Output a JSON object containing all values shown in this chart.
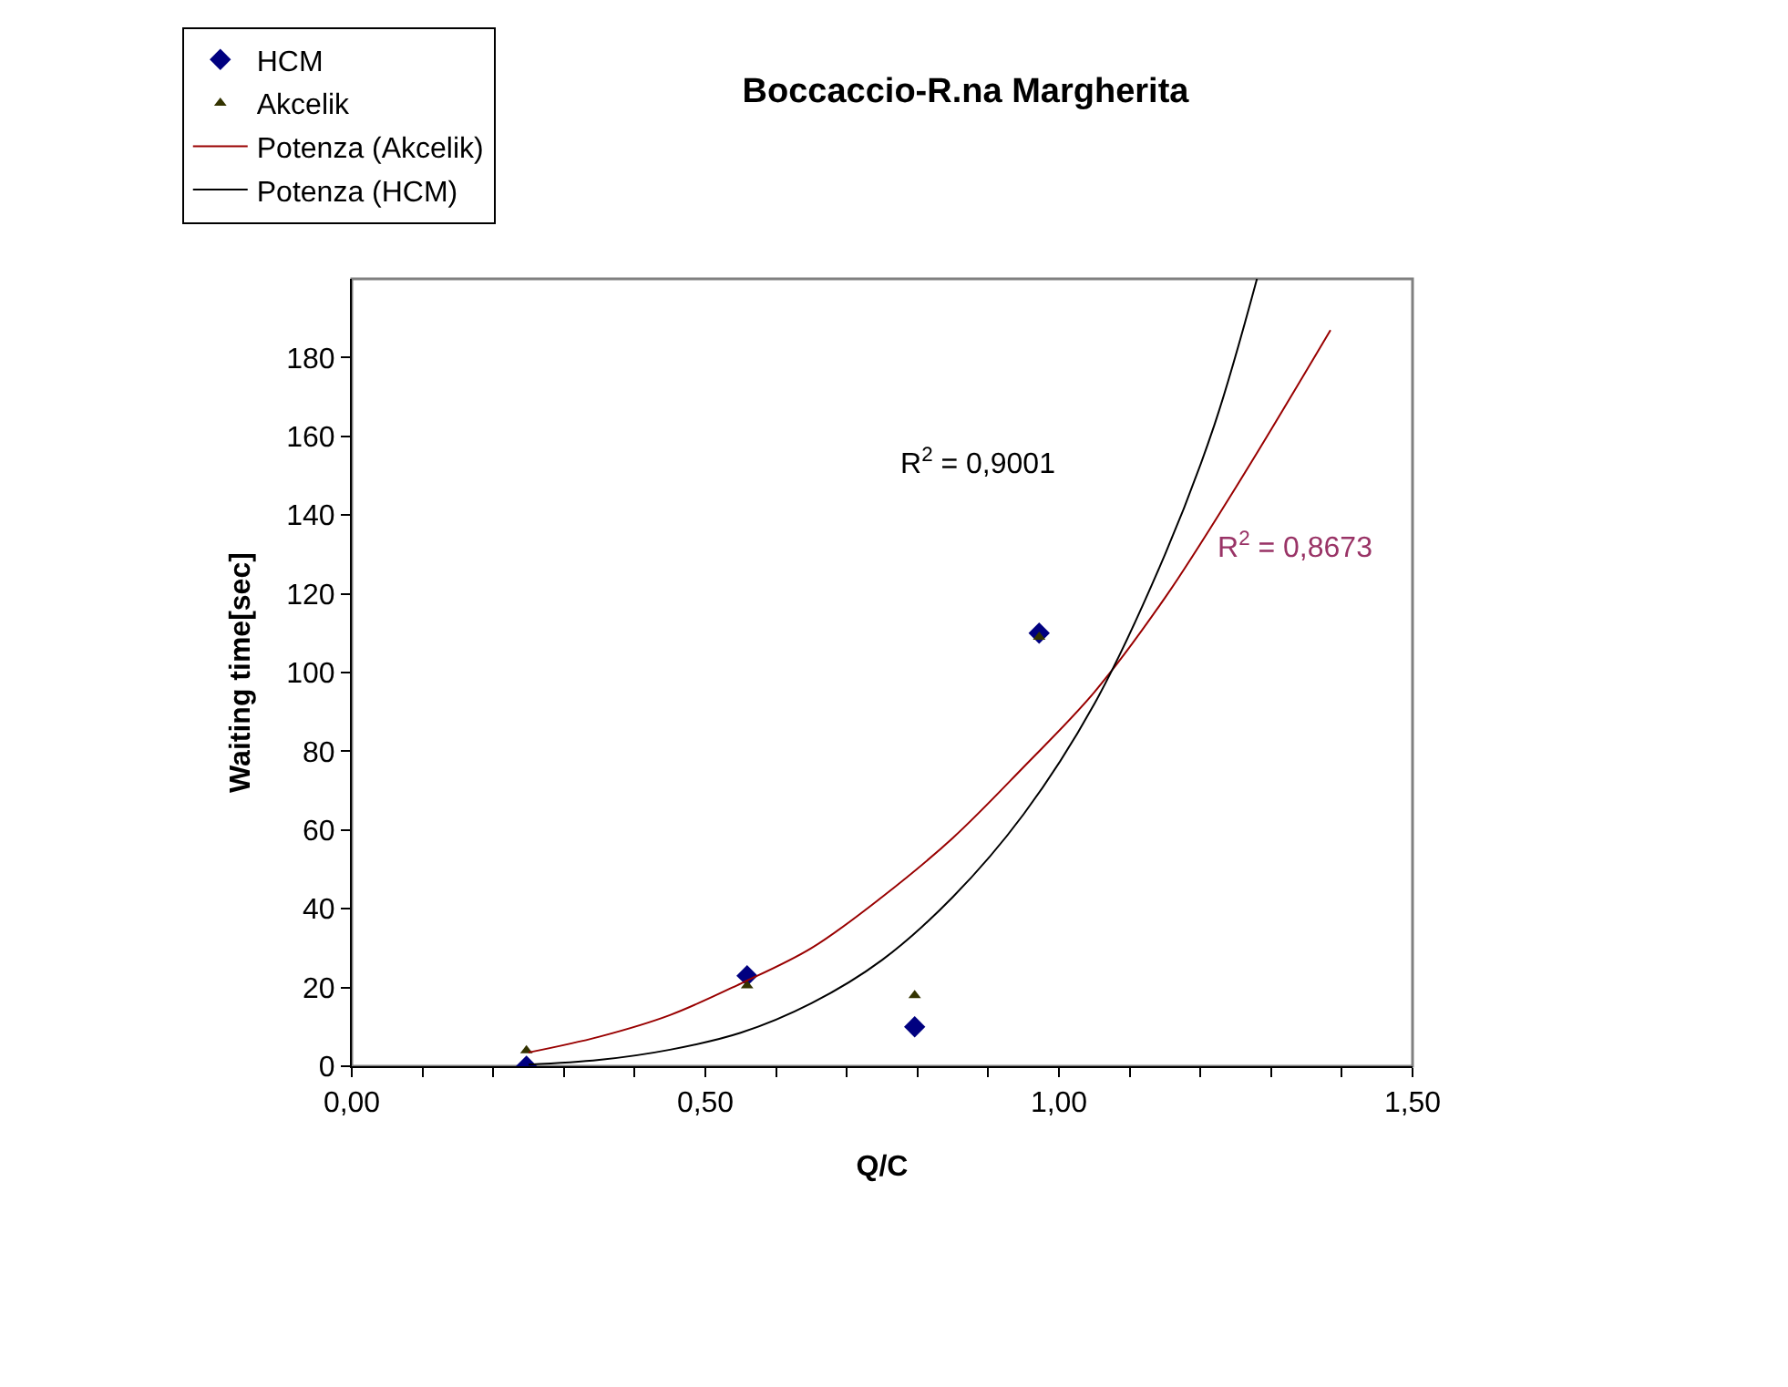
{
  "chart_data": {
    "type": "scatter",
    "title": "Boccaccio-R.na Margherita",
    "xlabel": "Q/C",
    "ylabel": "Waiting time[sec]",
    "xlim": [
      0,
      1.5
    ],
    "ylim": [
      0,
      200
    ],
    "xticks": [
      {
        "value": 0,
        "label": "0,00"
      },
      {
        "value": 0.1,
        "label": null
      },
      {
        "value": 0.2,
        "label": null
      },
      {
        "value": 0.3,
        "label": null
      },
      {
        "value": 0.4,
        "label": null
      },
      {
        "value": 0.5,
        "label": "0,50"
      },
      {
        "value": 0.6,
        "label": null
      },
      {
        "value": 0.7,
        "label": null
      },
      {
        "value": 0.8,
        "label": null
      },
      {
        "value": 0.9,
        "label": null
      },
      {
        "value": 1.0,
        "label": "1,00"
      },
      {
        "value": 1.1,
        "label": null
      },
      {
        "value": 1.2,
        "label": null
      },
      {
        "value": 1.3,
        "label": null
      },
      {
        "value": 1.4,
        "label": null
      },
      {
        "value": 1.5,
        "label": "1,50"
      }
    ],
    "yticks": [
      0,
      20,
      40,
      60,
      80,
      100,
      120,
      140,
      160,
      180
    ],
    "grid": false,
    "legend": "top left",
    "series": [
      {
        "name": "HCM",
        "marker": "diamond",
        "color": "#000080",
        "x": [
          0.247,
          0.559,
          0.796,
          0.972
        ],
        "values": [
          0,
          23,
          10,
          110
        ]
      },
      {
        "name": "Akcelik",
        "marker": "triangle",
        "color": "#333300",
        "x": [
          0.247,
          0.559,
          0.796,
          0.972
        ],
        "values": [
          4,
          20.5,
          18,
          109
        ]
      },
      {
        "name": "Potenza (Akcelik)",
        "type": "line",
        "marker": "none",
        "line_style": "solid",
        "color": "#990000",
        "x": [
          0.25,
          0.35,
          0.45,
          0.55,
          0.65,
          0.75,
          0.85,
          0.95,
          1.05,
          1.15,
          1.25,
          1.384
        ],
        "values": [
          3.5,
          7.5,
          13,
          21,
          30,
          43,
          58,
          76,
          95,
          119,
          147,
          187
        ]
      },
      {
        "name": "Potenza (HCM)",
        "type": "line",
        "marker": "none",
        "line_style": "solid",
        "color": "#000000",
        "x": [
          0.25,
          0.35,
          0.45,
          0.55,
          0.65,
          0.75,
          0.85,
          0.95,
          1.05,
          1.15,
          1.22,
          1.28
        ],
        "values": [
          0.4,
          1.6,
          4.2,
          8.5,
          16,
          27,
          43,
          64,
          92,
          130,
          163,
          200
        ]
      }
    ],
    "annotations": [
      "R$^{2}$ = 0,9001",
      "R$^{2}$ = 0,8673"
    ]
  }
}
